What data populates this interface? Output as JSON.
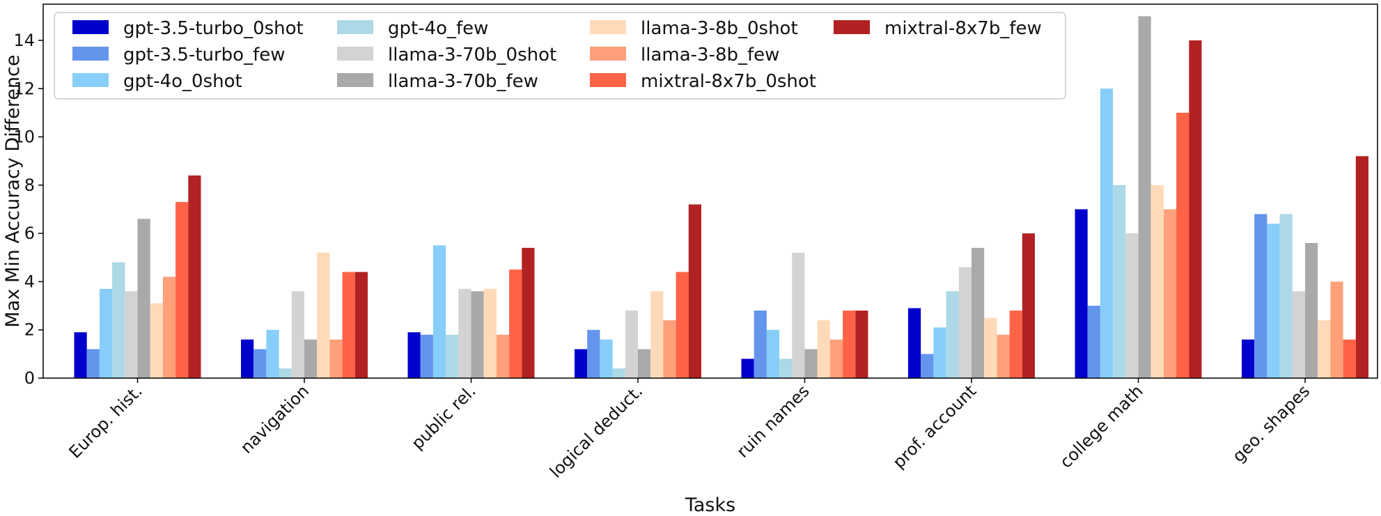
{
  "chart_data": {
    "type": "bar",
    "title": "",
    "xlabel": "Tasks",
    "ylabel": "Max Min Accuracy Difference",
    "ylim": [
      0,
      15.5
    ],
    "yticks": [
      "0",
      "2",
      "4",
      "6",
      "8",
      "10",
      "12",
      "14"
    ],
    "grid": false,
    "legend_position": "top-left",
    "categories": [
      "Europ. hist.",
      "navigation",
      "public rel.",
      "logical deduct.",
      "ruin names",
      "prof. account",
      "college math",
      "geo. shapes"
    ],
    "series": [
      {
        "name": "gpt-3.5-turbo_0shot",
        "color": "#0000cd",
        "values": [
          1.9,
          1.6,
          1.9,
          1.2,
          0.8,
          2.9,
          7.0,
          1.6
        ]
      },
      {
        "name": "gpt-3.5-turbo_few",
        "color": "#6495ed",
        "values": [
          1.2,
          1.2,
          1.8,
          2.0,
          2.8,
          1.0,
          3.0,
          6.8
        ]
      },
      {
        "name": "gpt-4o_0shot",
        "color": "#87cefa",
        "values": [
          3.7,
          2.0,
          5.5,
          1.6,
          2.0,
          2.1,
          12.0,
          6.4
        ]
      },
      {
        "name": "gpt-4o_few",
        "color": "#add8e6",
        "values": [
          4.8,
          0.4,
          1.8,
          0.4,
          0.8,
          3.6,
          8.0,
          6.8
        ]
      },
      {
        "name": "llama-3-70b_0shot",
        "color": "#d3d3d3",
        "values": [
          3.6,
          3.6,
          3.7,
          2.8,
          5.2,
          4.6,
          6.0,
          3.6
        ]
      },
      {
        "name": "llama-3-70b_few",
        "color": "#a9a9a9",
        "values": [
          6.6,
          1.6,
          3.6,
          1.2,
          1.2,
          5.4,
          15.0,
          5.6
        ]
      },
      {
        "name": "llama-3-8b_0shot",
        "color": "#ffdab9",
        "values": [
          3.1,
          5.2,
          3.7,
          3.6,
          2.4,
          2.5,
          8.0,
          2.4
        ]
      },
      {
        "name": "llama-3-8b_few",
        "color": "#ffa07a",
        "values": [
          4.2,
          1.6,
          1.8,
          2.4,
          1.6,
          1.8,
          7.0,
          4.0
        ]
      },
      {
        "name": "mixtral-8x7b_0shot",
        "color": "#ff6347",
        "values": [
          7.3,
          4.4,
          4.5,
          4.4,
          2.8,
          2.8,
          11.0,
          1.6
        ]
      },
      {
        "name": "mixtral-8x7b_few",
        "color": "#b22222",
        "values": [
          8.4,
          4.4,
          5.4,
          7.2,
          2.8,
          6.0,
          14.0,
          9.2
        ]
      }
    ]
  }
}
